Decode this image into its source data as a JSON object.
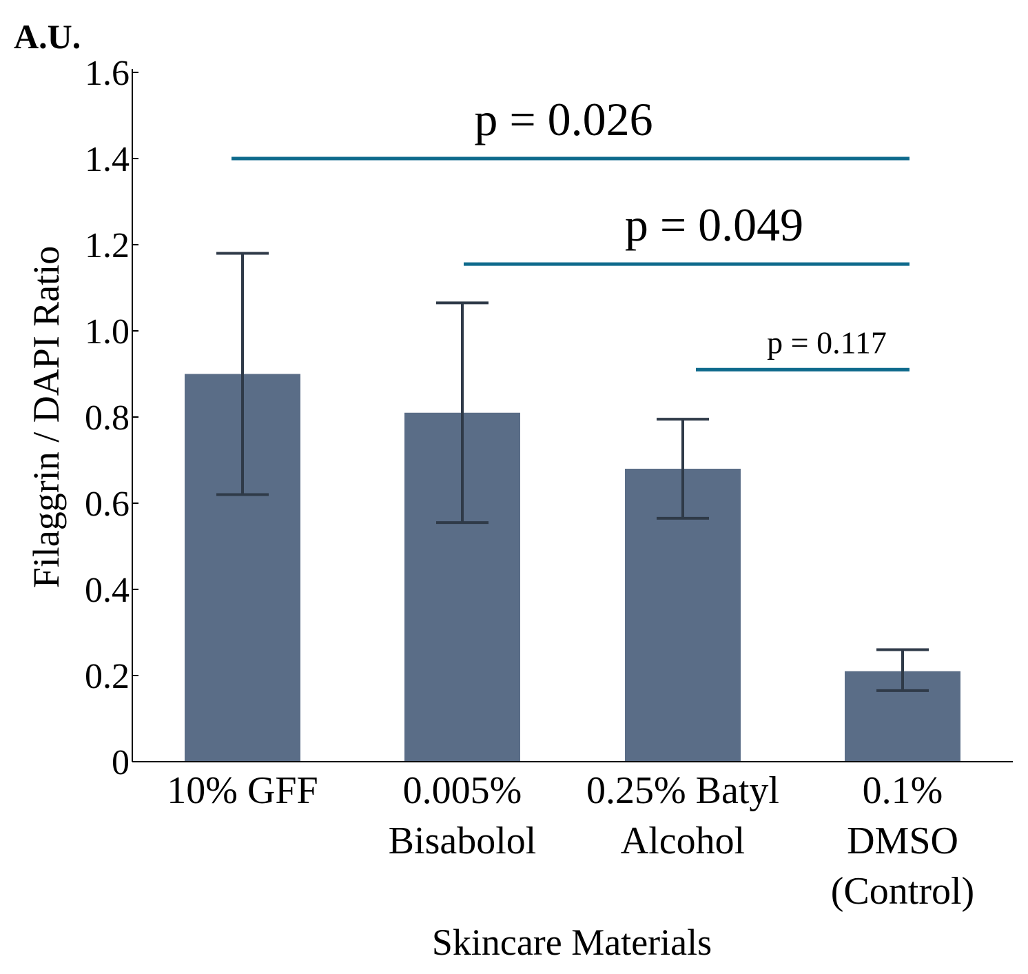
{
  "chart_data": {
    "type": "bar",
    "unit_label": "A.U.",
    "ylabel": "Filaggrin / DAPI Ratio",
    "xlabel": "Skincare Materials",
    "ylim": [
      0,
      1.6
    ],
    "yticks": [
      0,
      0.2,
      0.4,
      0.6,
      0.8,
      1.0,
      1.2,
      1.4,
      1.6
    ],
    "ytick_labels": [
      "0",
      "0.2",
      "0.4",
      "0.6",
      "0.8",
      "1.0",
      "1.2",
      "1.4",
      "1.6"
    ],
    "categories": [
      {
        "lines": [
          "10% GFF"
        ]
      },
      {
        "lines": [
          "0.005%",
          "Bisabolol"
        ]
      },
      {
        "lines": [
          "0.25% Batyl",
          "Alcohol"
        ]
      },
      {
        "lines": [
          "0.1%",
          "DMSO",
          "(Control)"
        ]
      }
    ],
    "values": [
      0.9,
      0.81,
      0.68,
      0.21
    ],
    "error_low": [
      0.62,
      0.555,
      0.565,
      0.165
    ],
    "error_high": [
      1.18,
      1.065,
      0.795,
      0.26
    ],
    "bar_color": "#5a6d87",
    "error_color": "#2f3a48",
    "significance": [
      {
        "label": "p = 0.026",
        "y": 1.4,
        "from": 0,
        "to": 3,
        "size": "large"
      },
      {
        "label": "p = 0.049",
        "y": 1.155,
        "from": 1,
        "to": 3,
        "size": "large"
      },
      {
        "label": "p = 0.117",
        "y": 0.91,
        "from": 2,
        "to": 3,
        "size": "small"
      }
    ],
    "significance_color": "#0e6a8c"
  }
}
